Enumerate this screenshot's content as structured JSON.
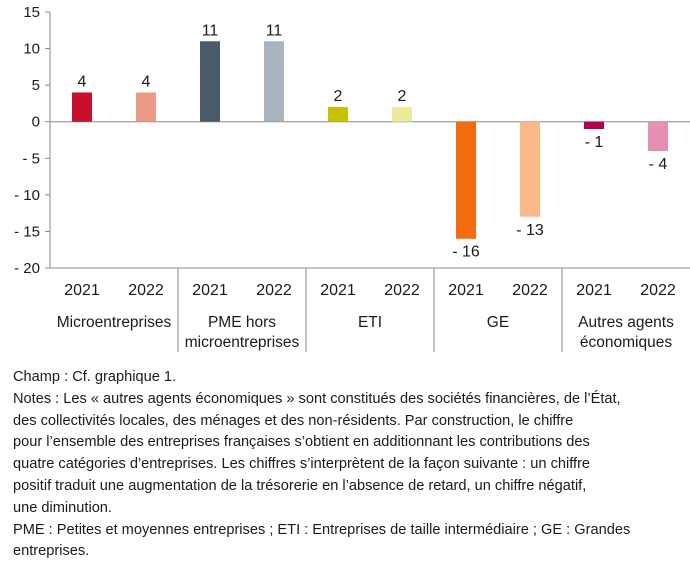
{
  "chart_data": {
    "type": "bar",
    "ylim": [
      -20,
      15
    ],
    "yticks": [
      15,
      10,
      5,
      0,
      -5,
      -10,
      -15,
      -20
    ],
    "ytick_labels": [
      "15",
      "10",
      "5",
      "0",
      "- 5",
      "- 10",
      "- 15",
      "- 20"
    ],
    "grid": false,
    "groups": [
      {
        "label_lines": [
          "Microentreprises"
        ],
        "bars": [
          {
            "year": "2021",
            "value": 4,
            "label": "4",
            "color": "#c8102e"
          },
          {
            "year": "2022",
            "value": 4,
            "label": "4",
            "color": "#ea9a87"
          }
        ]
      },
      {
        "label_lines": [
          "PME hors",
          "microentreprises"
        ],
        "bars": [
          {
            "year": "2021",
            "value": 11,
            "label": "11",
            "color": "#4a5a69"
          },
          {
            "year": "2022",
            "value": 11,
            "label": "11",
            "color": "#a8b4c0"
          }
        ]
      },
      {
        "label_lines": [
          "ETI"
        ],
        "bars": [
          {
            "year": "2021",
            "value": 2,
            "label": "2",
            "color": "#c6c200"
          },
          {
            "year": "2022",
            "value": 2,
            "label": "2",
            "color": "#ece99a"
          }
        ]
      },
      {
        "label_lines": [
          "GE"
        ],
        "bars": [
          {
            "year": "2021",
            "value": -16,
            "label": "- 16",
            "color": "#f26b0c"
          },
          {
            "year": "2022",
            "value": -13,
            "label": "- 13",
            "color": "#fbb98a"
          }
        ]
      },
      {
        "label_lines": [
          "Autres agents",
          "économiques"
        ],
        "bars": [
          {
            "year": "2021",
            "value": -1,
            "label": "- 1",
            "color": "#b5004f"
          },
          {
            "year": "2022",
            "value": -4,
            "label": "- 4",
            "color": "#e58fb5"
          }
        ]
      }
    ]
  },
  "notes": {
    "champ": "Champ : Cf. graphique 1.",
    "notes_lines": [
      "Notes : Les « autres agents économiques » sont constitués des sociétés financières, de l’État,",
      "des collectivités locales, des ménages et des non-résidents. Par construction, le chiffre",
      "pour l’ensemble des entreprises françaises s’obtient en additionnant les contributions des",
      "quatre catégories d’entreprises. Les chiffres s’interprètent de la façon suivante : un chiffre",
      "positif traduit une augmentation de la trésorerie en l’absence de retard, un chiffre négatif,",
      "une diminution."
    ],
    "abbreviations": "PME : Petites et moyennes entreprises ; ETI : Entreprises de taille intermédiaire ; GE : Grandes entreprises."
  }
}
